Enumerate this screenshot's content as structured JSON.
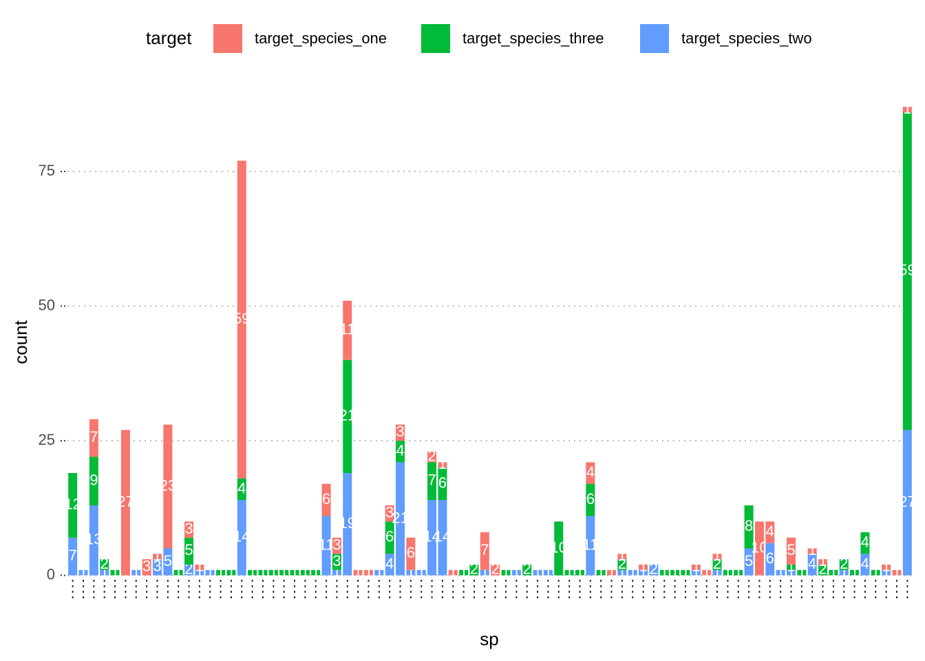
{
  "chart_data": {
    "type": "stacked_bar",
    "legend_title": "target",
    "x_label": "sp",
    "y_label": "count",
    "categories": [
      null,
      null,
      null,
      null,
      null,
      null,
      null,
      null,
      null,
      null,
      null,
      null,
      null,
      null,
      null,
      null,
      null,
      null,
      null,
      null,
      null,
      null,
      null,
      null,
      null,
      null,
      null,
      null,
      null,
      null,
      null,
      null,
      null,
      null,
      null,
      null,
      null,
      null,
      null,
      null,
      null,
      null,
      null,
      null,
      null,
      null,
      null,
      null,
      null,
      null,
      null,
      null,
      null,
      null,
      null,
      null,
      null,
      null,
      null,
      null,
      null,
      null,
      null,
      null,
      null,
      null,
      null,
      null,
      null,
      null,
      null,
      null,
      null,
      null,
      null,
      null,
      null,
      null,
      null,
      null
    ],
    "series": [
      {
        "name": "target_species_one",
        "color": "#F8766D",
        "values": [
          0,
          0,
          7,
          0,
          0,
          27,
          0,
          3,
          1,
          23,
          0,
          3,
          1,
          0,
          0,
          0,
          59,
          0,
          0,
          0,
          0,
          0,
          0,
          0,
          6,
          3,
          11,
          1,
          1,
          0,
          3,
          3,
          6,
          0,
          2,
          1,
          1,
          0,
          0,
          7,
          2,
          0,
          0,
          0,
          0,
          0,
          0,
          0,
          0,
          4,
          0,
          1,
          1,
          0,
          1,
          0,
          0,
          0,
          0,
          1,
          1,
          1,
          0,
          0,
          0,
          10,
          4,
          0,
          5,
          0,
          1,
          1,
          0,
          0,
          0,
          0,
          0,
          1,
          1,
          1
        ]
      },
      {
        "name": "target_species_three",
        "color": "#00BA38",
        "values": [
          12,
          0,
          9,
          2,
          1,
          0,
          0,
          0,
          0,
          0,
          1,
          5,
          0,
          0,
          1,
          1,
          4,
          1,
          1,
          1,
          1,
          1,
          1,
          1,
          0,
          3,
          21,
          0,
          0,
          0,
          6,
          4,
          0,
          0,
          7,
          6,
          0,
          1,
          2,
          0,
          0,
          1,
          0,
          2,
          0,
          0,
          10,
          1,
          1,
          6,
          1,
          0,
          2,
          0,
          0,
          0,
          1,
          1,
          1,
          0,
          0,
          2,
          1,
          1,
          8,
          0,
          0,
          0,
          1,
          1,
          0,
          2,
          1,
          2,
          1,
          4,
          1,
          0,
          0,
          59
        ]
      },
      {
        "name": "target_species_two",
        "color": "#619CFF",
        "values": [
          7,
          1,
          13,
          1,
          0,
          0,
          1,
          0,
          3,
          5,
          0,
          2,
          1,
          1,
          0,
          0,
          14,
          0,
          0,
          0,
          0,
          0,
          0,
          0,
          11,
          1,
          19,
          0,
          0,
          1,
          4,
          21,
          1,
          1,
          14,
          14,
          0,
          0,
          0,
          1,
          0,
          0,
          1,
          0,
          1,
          1,
          0,
          0,
          0,
          11,
          0,
          0,
          1,
          1,
          1,
          2,
          0,
          0,
          0,
          1,
          0,
          1,
          0,
          0,
          5,
          0,
          6,
          1,
          1,
          0,
          4,
          0,
          0,
          1,
          0,
          4,
          0,
          1,
          0,
          27
        ]
      }
    ],
    "ylim": [
      -4.4,
      91.5
    ],
    "yticks": [
      0,
      25,
      50,
      75
    ],
    "grid": true,
    "legend_position": "top"
  }
}
